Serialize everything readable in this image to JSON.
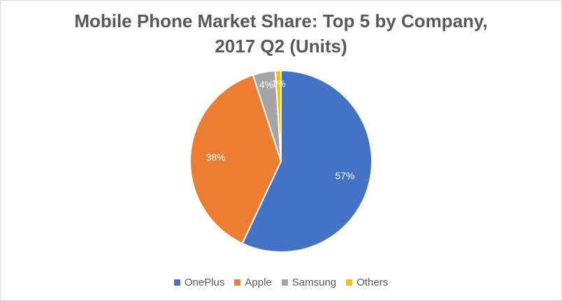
{
  "chart_data": {
    "type": "pie",
    "title": "Mobile Phone Market Share: Top 5 by Company,\n2017 Q2 (Units)",
    "slices": [
      {
        "name": "OnePlus",
        "value": 57,
        "label": "57%",
        "color": "#4472c4"
      },
      {
        "name": "Apple",
        "value": 38,
        "label": "38%",
        "color": "#ed7d31"
      },
      {
        "name": "Samsung",
        "value": 4,
        "label": "4%",
        "color": "#a5a5a5"
      },
      {
        "name": "Others",
        "value": 1,
        "label": "1%",
        "color": "#ffc000"
      }
    ],
    "legend_position": "bottom"
  }
}
